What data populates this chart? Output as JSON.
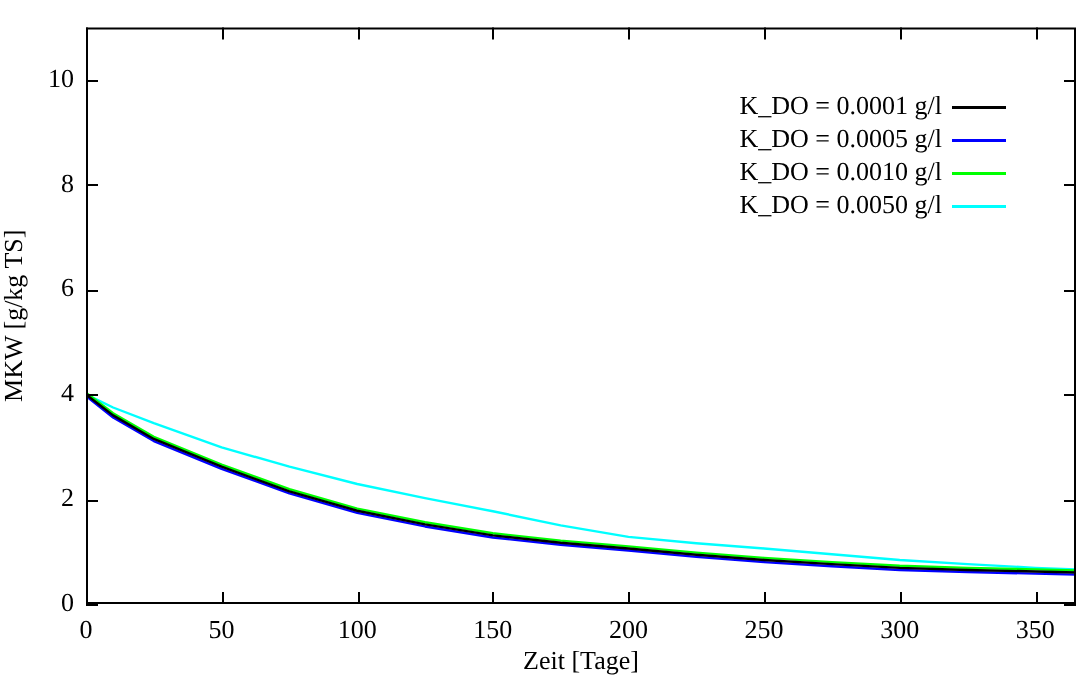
{
  "chart_data": {
    "type": "line",
    "xlabel": "Zeit [Tage]",
    "ylabel": "MKW [g/kg TS]",
    "xlim": [
      0,
      365
    ],
    "xticks": [
      0,
      50,
      100,
      150,
      200,
      250,
      300,
      350
    ],
    "ylim": [
      0,
      11
    ],
    "yticks": [
      0,
      2,
      4,
      6,
      8,
      10
    ],
    "grid": false,
    "legend": "top right",
    "marker": "none",
    "line_style": "solid",
    "x": [
      0,
      10,
      25,
      50,
      75,
      100,
      125,
      150,
      175,
      200,
      225,
      250,
      275,
      300,
      325,
      350,
      365
    ],
    "series": [
      {
        "name": "K_DO = 0.0001 g/l",
        "color": "#000000",
        "values": [
          4.0,
          3.6,
          3.15,
          2.62,
          2.15,
          1.78,
          1.52,
          1.31,
          1.17,
          1.06,
          0.94,
          0.84,
          0.76,
          0.69,
          0.65,
          0.62,
          0.6
        ]
      },
      {
        "name": "K_DO = 0.0005 g/l",
        "color": "#0000ff",
        "values": [
          3.97,
          3.56,
          3.11,
          2.58,
          2.11,
          1.74,
          1.48,
          1.27,
          1.13,
          1.02,
          0.9,
          0.8,
          0.72,
          0.65,
          0.61,
          0.58,
          0.56
        ]
      },
      {
        "name": "K_DO = 0.0010 g/l",
        "color": "#00ff00",
        "values": [
          4.03,
          3.64,
          3.19,
          2.66,
          2.19,
          1.82,
          1.56,
          1.35,
          1.21,
          1.1,
          0.98,
          0.88,
          0.8,
          0.73,
          0.69,
          0.66,
          0.64
        ]
      },
      {
        "name": "K_DO = 0.0050 g/l",
        "color": "#00ffff",
        "values": [
          4.0,
          3.75,
          3.45,
          2.99,
          2.62,
          2.29,
          2.02,
          1.77,
          1.5,
          1.28,
          1.16,
          1.06,
          0.95,
          0.84,
          0.76,
          0.69,
          0.66
        ]
      }
    ]
  }
}
